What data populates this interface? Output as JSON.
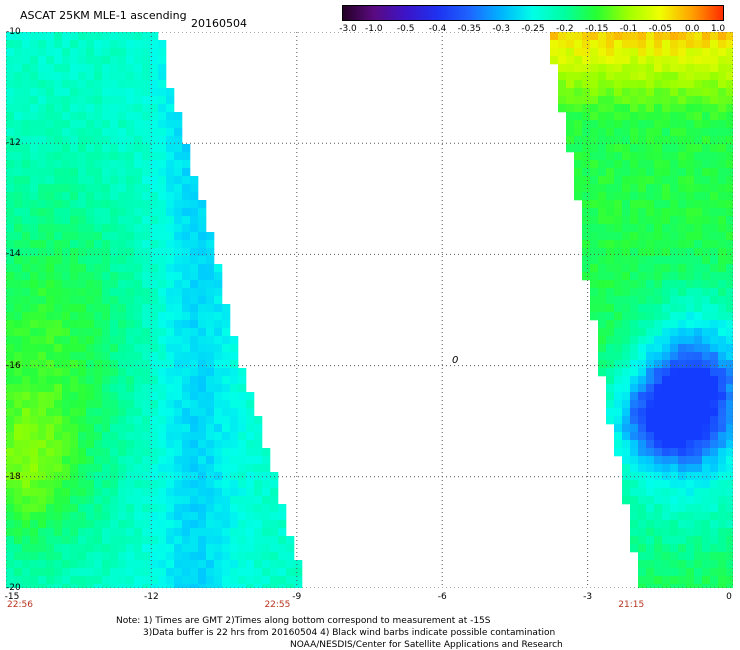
{
  "header": {
    "title": "ASCAT 25KM MLE-1 ascending",
    "date": "20160504"
  },
  "colorbar": {
    "labels": [
      "-3.0",
      "-1.0",
      "-0.5",
      "-0.4",
      "-0.35",
      "-0.3",
      "-0.25",
      "-0.2",
      "-0.15",
      "-0.1",
      "-0.05",
      "0.0",
      "1.0"
    ],
    "colors": [
      "#220022",
      "#5a0a80",
      "#3c14c8",
      "#1e32f0",
      "#1e64ff",
      "#00b4ff",
      "#00ffe6",
      "#00ffa0",
      "#28ff32",
      "#a0ff00",
      "#f0ff00",
      "#ffa000",
      "#ff2800"
    ]
  },
  "axes": {
    "y_ticks": [
      {
        "value": -10,
        "label": "-10"
      },
      {
        "value": -12,
        "label": "-12"
      },
      {
        "value": -14,
        "label": "-14"
      },
      {
        "value": -16,
        "label": "-16"
      },
      {
        "value": -18,
        "label": "-18"
      },
      {
        "value": -20,
        "label": "-20"
      }
    ],
    "x_ticks": [
      {
        "value": -15,
        "label": "-15"
      },
      {
        "value": -12,
        "label": "-12"
      },
      {
        "value": -9,
        "label": "-9"
      },
      {
        "value": -6,
        "label": "-6"
      },
      {
        "value": -3,
        "label": "-3"
      },
      {
        "value": 0,
        "label": "0"
      }
    ],
    "x_range": [
      -15,
      0
    ],
    "y_range": [
      -20,
      -10
    ]
  },
  "swath_times": [
    {
      "x": -15,
      "label": "22:56"
    },
    {
      "x": -9.4,
      "label": "22:55"
    },
    {
      "x": -2.1,
      "label": "21:15"
    }
  ],
  "marker": {
    "label": "0",
    "x": -5.7,
    "y": -16
  },
  "notes": [
    "Note: 1) Times are GMT 2)Times along bottom correspond to measurement at -15S",
    "3)Data buffer is 22 hrs from 20160504 4) Black wind barbs indicate possible contamination",
    "NOAA/NESDIS/Center for Satellite Applications and Research"
  ],
  "colors": {
    "grid": "#555555",
    "time_label": "#b8331e",
    "background": "#ffffff"
  }
}
